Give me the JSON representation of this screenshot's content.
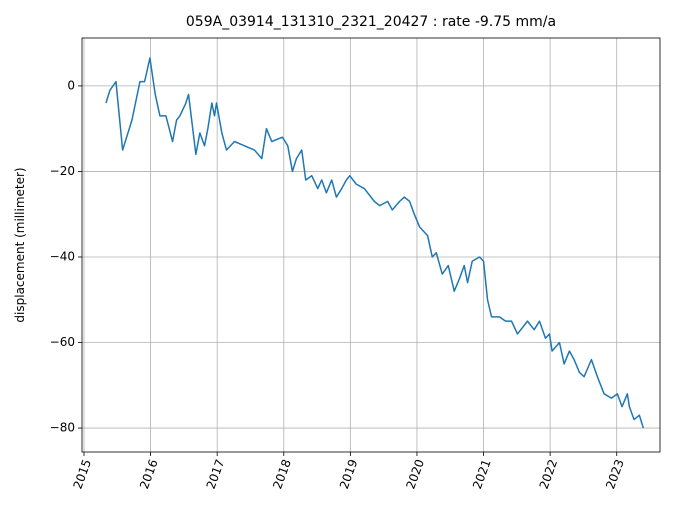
{
  "chart_data": {
    "type": "line",
    "title": "059A_03914_131310_2321_20427 : rate -9.75 mm/a",
    "y_label": "displacement (millimeter)",
    "x": [
      2015.33,
      2015.39,
      2015.48,
      2015.58,
      2015.72,
      2015.84,
      2015.91,
      2015.99,
      2016.07,
      2016.14,
      2016.23,
      2016.33,
      2016.39,
      2016.44,
      2016.53,
      2016.57,
      2016.68,
      2016.74,
      2016.81,
      2016.86,
      2016.92,
      2016.96,
      2016.99,
      2017.07,
      2017.14,
      2017.26,
      2017.41,
      2017.56,
      2017.67,
      2017.74,
      2017.82,
      2017.98,
      2018.06,
      2018.13,
      2018.19,
      2018.27,
      2018.33,
      2018.42,
      2018.51,
      2018.57,
      2018.64,
      2018.72,
      2018.79,
      2018.87,
      2018.94,
      2018.99,
      2019.09,
      2019.21,
      2019.36,
      2019.44,
      2019.56,
      2019.63,
      2019.74,
      2019.81,
      2019.89,
      2019.96,
      2020.04,
      2020.16,
      2020.23,
      2020.29,
      2020.38,
      2020.47,
      2020.56,
      2020.64,
      2020.71,
      2020.76,
      2020.83,
      2020.94,
      2021.0,
      2021.06,
      2021.12,
      2021.24,
      2021.33,
      2021.42,
      2021.51,
      2021.66,
      2021.76,
      2021.84,
      2021.93,
      2021.99,
      2022.03,
      2022.14,
      2022.21,
      2022.29,
      2022.36,
      2022.44,
      2022.51,
      2022.62,
      2022.71,
      2022.81,
      2022.92,
      2023.01,
      2023.08,
      2023.16,
      2023.19,
      2023.26,
      2023.34,
      2023.4
    ],
    "series": [
      {
        "color": "#1f77b4",
        "values": [
          -4,
          -1,
          1,
          -15,
          -8,
          1,
          1,
          6.5,
          -2,
          -7,
          -7,
          -13,
          -8,
          -7,
          -4,
          -2,
          -16,
          -11,
          -14,
          -10,
          -4,
          -7,
          -4,
          -11,
          -15,
          -13,
          -14,
          -15,
          -17,
          -10,
          -13,
          -12,
          -14,
          -20,
          -17,
          -15,
          -22,
          -21,
          -24,
          -22,
          -25,
          -22,
          -26,
          -24,
          -22,
          -21,
          -23,
          -24,
          -27,
          -28,
          -27,
          -29,
          -27,
          -26,
          -27,
          -30,
          -33,
          -35,
          -40,
          -39,
          -44,
          -42,
          -48,
          -45,
          -42,
          -46,
          -41,
          -40,
          -41,
          -50,
          -54,
          -54,
          -55,
          -55,
          -58,
          -55,
          -57,
          -55,
          -59,
          -58,
          -62,
          -60,
          -65,
          -62,
          -64,
          -67,
          -68,
          -64,
          -68,
          -72,
          -73,
          -72,
          -75,
          -72,
          -75,
          -78,
          -77,
          -80
        ]
      }
    ],
    "xlim": [
      2014.97,
      2023.65
    ],
    "ylim": [
      -85.6,
      11.2
    ],
    "xticks": [
      2015,
      2016,
      2017,
      2018,
      2019,
      2020,
      2021,
      2022,
      2023
    ],
    "yticks": [
      {
        "value": -80,
        "label": "−80"
      },
      {
        "value": -60,
        "label": "−60"
      },
      {
        "value": -40,
        "label": "−40"
      },
      {
        "value": -20,
        "label": "−20"
      },
      0
    ],
    "grid": true
  }
}
